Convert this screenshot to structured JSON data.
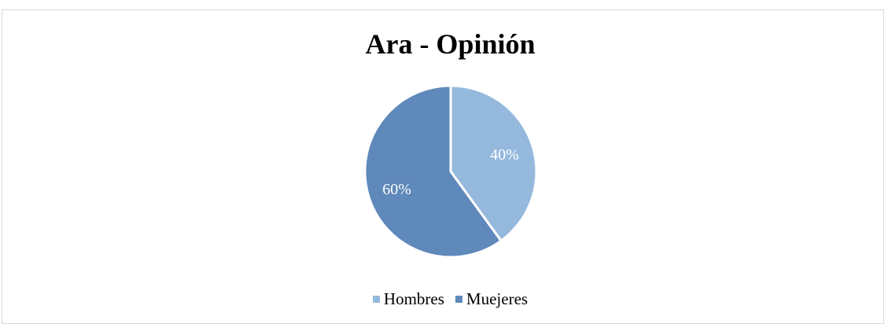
{
  "chart_data": {
    "type": "pie",
    "title": "Ara - Opinión",
    "categories": [
      "Hombres",
      "Muejeres"
    ],
    "values": [
      40,
      60
    ],
    "data_labels": [
      "40%",
      "60%"
    ],
    "colors": [
      "#95b9dd",
      "#5f88bb"
    ],
    "legend_position": "bottom"
  }
}
